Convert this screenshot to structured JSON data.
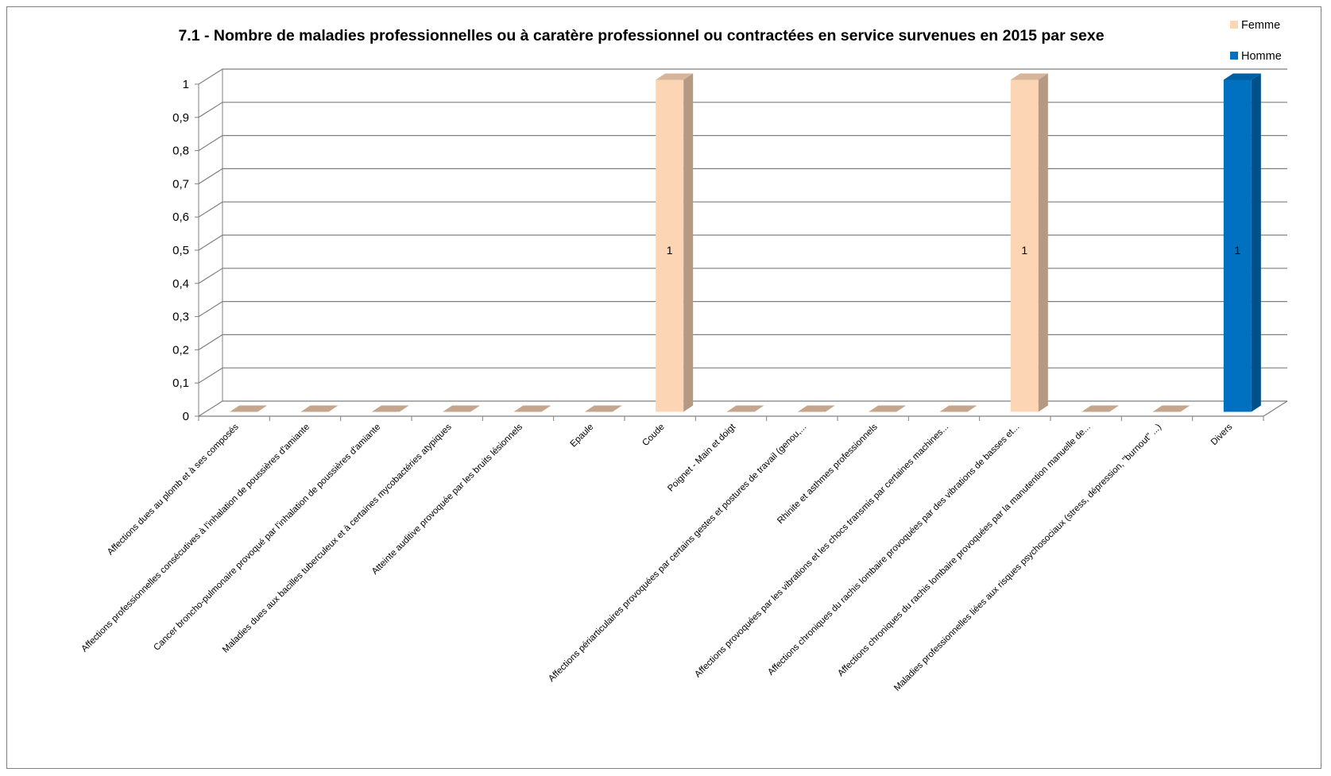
{
  "chart_data": {
    "type": "bar",
    "title": "7.1 - Nombre de maladies professionnelles ou à caratère professionnel ou contractées en service survenues en 2015 par sexe",
    "xlabel": "",
    "ylabel": "",
    "ylim": [
      0,
      1
    ],
    "y_ticks": [
      "0",
      "0,1",
      "0,2",
      "0,3",
      "0,4",
      "0,5",
      "0,6",
      "0,7",
      "0,8",
      "0,9",
      "1"
    ],
    "grid": true,
    "three_d": true,
    "legend_position": "top-right",
    "categories": [
      "Affections dues au plomb et à ses composés",
      "Affections professionnelles consécutives à l'inhalation de poussières d'amiante",
      "Cancer broncho-pulmonaire provoqué par l'inhalation de poussières d'amiante",
      "Maladies dues aux bacilles tuberculeux et à certaines mycobactéries atypiques",
      "Atteinte auditive provoquée par les bruits lésionnels",
      "Epaule",
      "Coude",
      "Poignet - Main et doigt",
      "Affections périarticulaires provoquées par certains gestes et postures de travail (genou,...",
      "Rhinite et asthmes professionnels",
      "Affections provoquées par les vibrations et les chocs transmis par certaines machines...",
      "Affections chroniques du rachis lombaire provoquées par des vibrations de basses et...",
      "Affections chroniques du rachis lombaire provoquées par la manutention manuelle de...",
      "Maladies professionnelles liées aux risques psychosociaux (stress, dépression, \"burnout\" ...)",
      "Divers"
    ],
    "series": [
      {
        "name": "Femme",
        "color": "#FCD5B5",
        "values": [
          0,
          0,
          0,
          0,
          0,
          0,
          1,
          0,
          0,
          0,
          0,
          1,
          0,
          0,
          0
        ]
      },
      {
        "name": "Homme",
        "color": "#0070C0",
        "values": [
          0,
          0,
          0,
          0,
          0,
          0,
          0,
          0,
          0,
          0,
          0,
          0,
          0,
          0,
          1
        ]
      }
    ],
    "data_labels": [
      "",
      "",
      "",
      "",
      "",
      "",
      "1",
      "",
      "",
      "",
      "",
      "1",
      "",
      "",
      "1"
    ]
  }
}
